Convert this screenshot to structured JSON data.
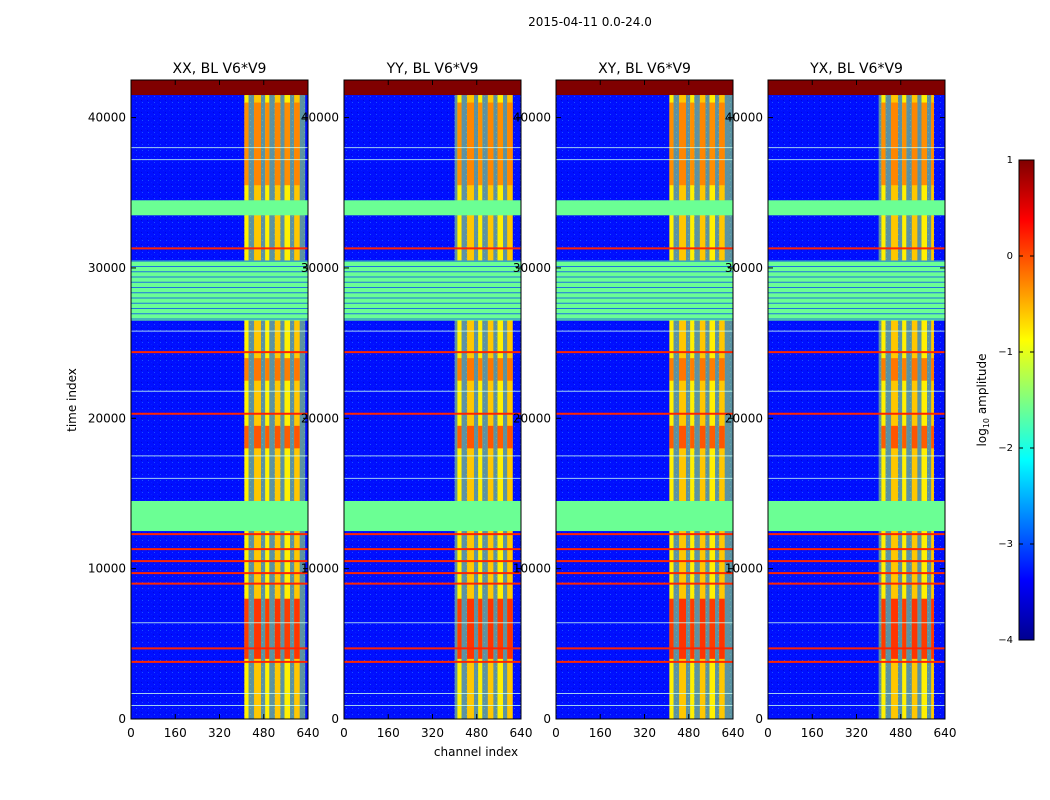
{
  "chart_data": {
    "type": "heatmap",
    "suptitle": "2015-04-11 0.0-24.0",
    "xlabel": "channel index",
    "ylabel": "time index",
    "xlim": [
      0,
      640
    ],
    "ylim": [
      0,
      42500
    ],
    "xticks": [
      0,
      160,
      320,
      480,
      640
    ],
    "yticks": [
      0,
      10000,
      20000,
      30000,
      40000
    ],
    "panels": [
      {
        "title": "XX, BL V6*V9",
        "hot_channels": [
          410,
          630
        ]
      },
      {
        "title": "YY, BL V6*V9",
        "hot_channels": [
          400,
          610
        ]
      },
      {
        "title": "XY, BL V6*V9",
        "hot_channels": [
          410,
          640
        ]
      },
      {
        "title": "YX, BL V6*V9",
        "hot_channels": [
          400,
          600
        ]
      }
    ],
    "bright_channel_bands": [
      [
        410,
        425
      ],
      [
        445,
        470
      ],
      [
        485,
        500
      ],
      [
        520,
        540
      ],
      [
        555,
        575
      ],
      [
        590,
        610
      ]
    ],
    "flagged_time_bands": [
      {
        "range": [
          33500,
          34500
        ],
        "value": -1.6
      },
      {
        "range": [
          26500,
          30500
        ],
        "value": -1.6
      },
      {
        "range": [
          12500,
          14500
        ],
        "value": -1.6
      },
      {
        "range": [
          41500,
          42500
        ],
        "value": 1.0
      }
    ],
    "orange_rows": [
      31300,
      24400,
      20300,
      12300,
      11300,
      10500,
      9700,
      9000,
      4700,
      3800
    ],
    "colorbar": {
      "label": "log10 amplitude",
      "label_base": "log",
      "label_sub": "10",
      "label_rest": " amplitude",
      "range": [
        -4,
        1
      ],
      "ticks": [
        "1",
        "0",
        "−1",
        "−2",
        "−3",
        "−4"
      ],
      "tick_values": [
        1,
        0,
        -1,
        -2,
        -3,
        -4
      ],
      "colormap": "jet"
    }
  }
}
